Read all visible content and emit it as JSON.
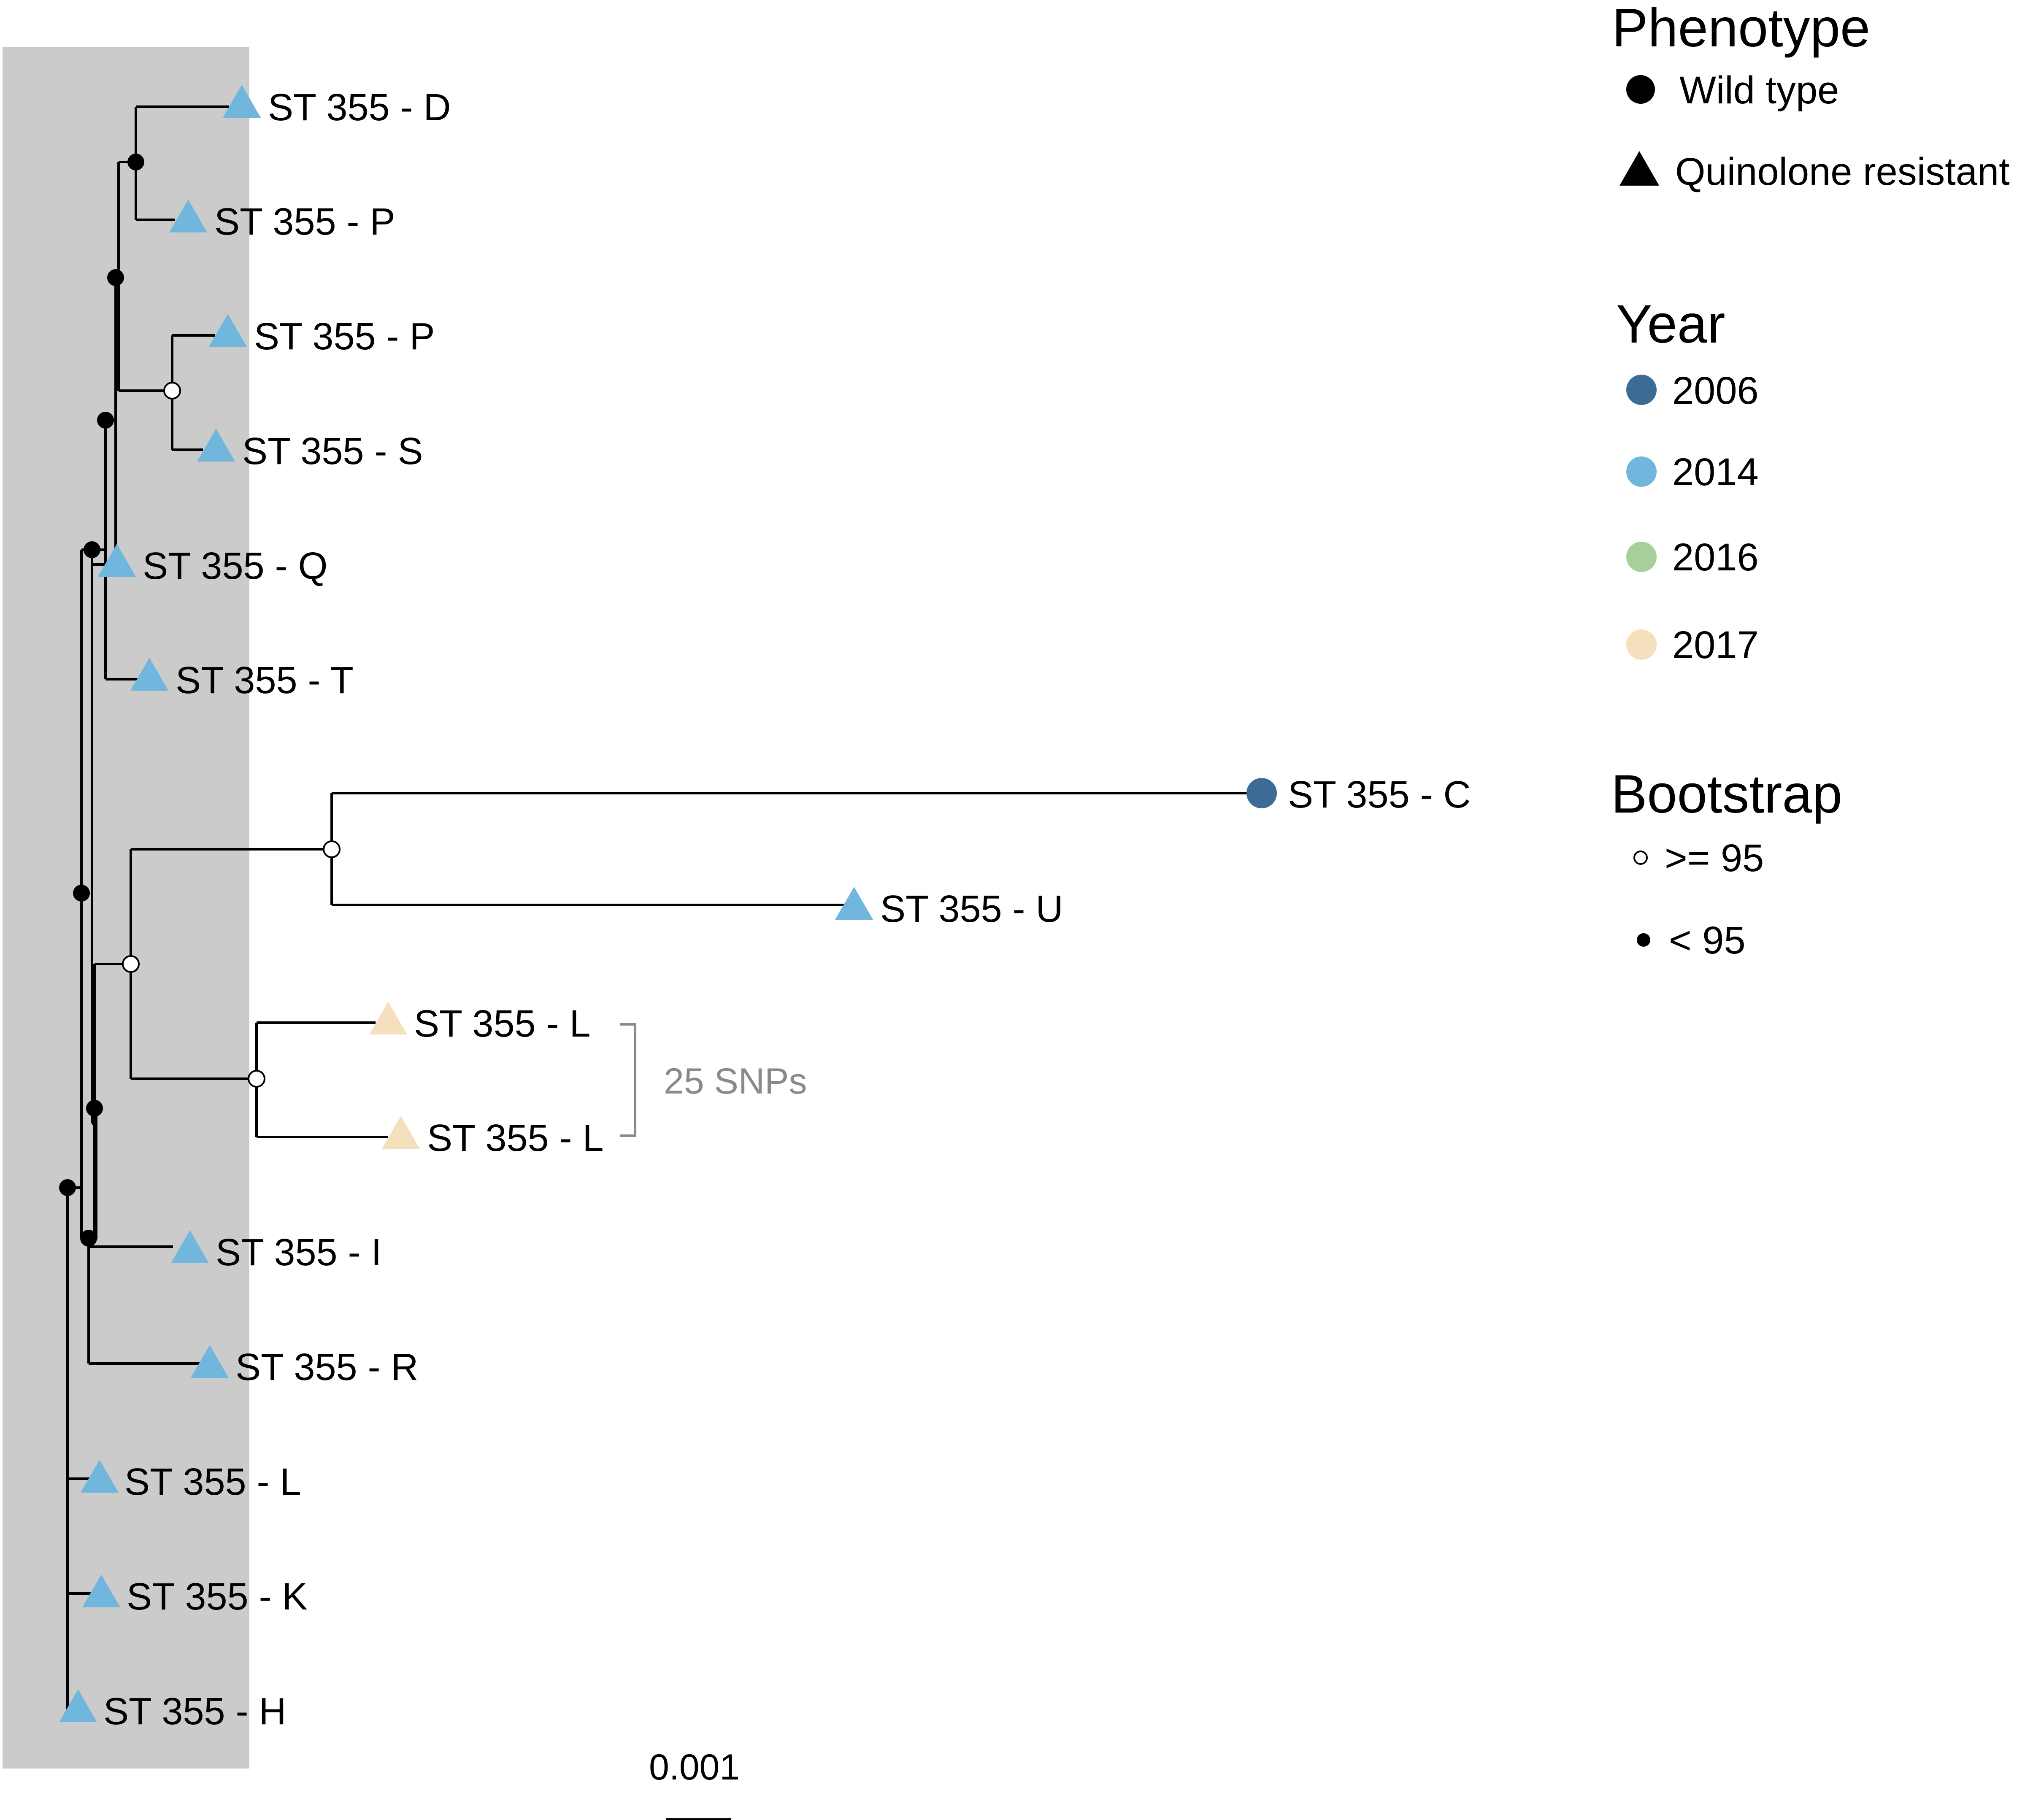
{
  "colors": {
    "highlight": "#cbcbcb",
    "year_2006": "#3c6c95",
    "year_2014": "#71b6dd",
    "year_2016": "#a8cf9a",
    "year_2017": "#f5e0be",
    "snp_bracket": "#8a8a8a"
  },
  "tips": [
    {
      "id": "t1",
      "label": "ST 355 - D",
      "phenotype": "Quinolone resistant",
      "year": "2014"
    },
    {
      "id": "t2",
      "label": "ST 355 - P",
      "phenotype": "Quinolone resistant",
      "year": "2014"
    },
    {
      "id": "t3",
      "label": "ST 355 - P",
      "phenotype": "Quinolone resistant",
      "year": "2014"
    },
    {
      "id": "t4",
      "label": "ST 355 - S",
      "phenotype": "Quinolone resistant",
      "year": "2014"
    },
    {
      "id": "t5",
      "label": "ST 355 - Q",
      "phenotype": "Quinolone resistant",
      "year": "2014"
    },
    {
      "id": "t6",
      "label": "ST 355 - T",
      "phenotype": "Quinolone resistant",
      "year": "2014"
    },
    {
      "id": "t7",
      "label": "ST 355 - C",
      "phenotype": "Wild type",
      "year": "2006"
    },
    {
      "id": "t8",
      "label": "ST 355 - U",
      "phenotype": "Quinolone resistant",
      "year": "2014"
    },
    {
      "id": "t9",
      "label": "ST 355 - L",
      "phenotype": "Quinolone resistant",
      "year": "2017"
    },
    {
      "id": "t10",
      "label": "ST 355 - L",
      "phenotype": "Quinolone resistant",
      "year": "2017"
    },
    {
      "id": "t11",
      "label": "ST 355 - I",
      "phenotype": "Quinolone resistant",
      "year": "2014"
    },
    {
      "id": "t12",
      "label": "ST 355 - R",
      "phenotype": "Quinolone resistant",
      "year": "2014"
    },
    {
      "id": "t13",
      "label": "ST 355 - L",
      "phenotype": "Quinolone resistant",
      "year": "2014"
    },
    {
      "id": "t14",
      "label": "ST 355 - K",
      "phenotype": "Quinolone resistant",
      "year": "2014"
    },
    {
      "id": "t15",
      "label": "ST 355 - H",
      "phenotype": "Quinolone resistant",
      "year": "2014"
    }
  ],
  "annotation": {
    "snp_label": "25 SNPs"
  },
  "scale_bar": {
    "label": "0.001"
  },
  "legend": {
    "phenotype": {
      "title": "Phenotype",
      "items": [
        {
          "label": "Wild type",
          "shape": "circle"
        },
        {
          "label": "Quinolone resistant",
          "shape": "triangle"
        }
      ]
    },
    "year": {
      "title": "Year",
      "items": [
        {
          "label": "2006",
          "color": "#3c6c95"
        },
        {
          "label": "2014",
          "color": "#71b6dd"
        },
        {
          "label": "2016",
          "color": "#a8cf9a"
        },
        {
          "label": "2017",
          "color": "#f5e0be"
        }
      ]
    },
    "bootstrap": {
      "title": "Bootstrap",
      "items": [
        {
          "label": ">= 95",
          "fill": "open"
        },
        {
          "label": "< 95",
          "fill": "filled"
        }
      ]
    }
  }
}
